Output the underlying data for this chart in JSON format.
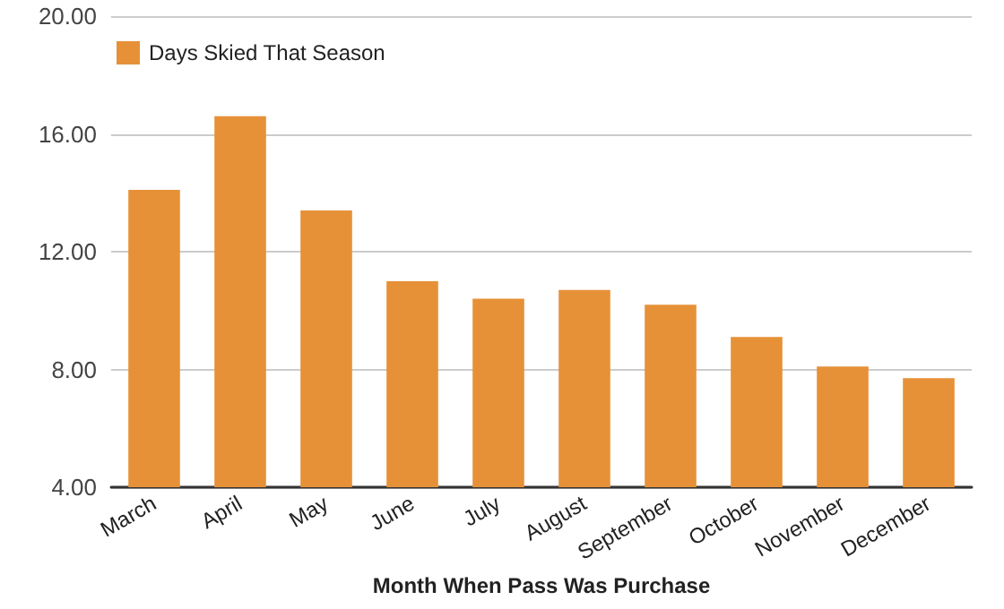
{
  "chart_data": {
    "type": "bar",
    "xlabel": "Month When Pass Was Purchase",
    "categories": [
      "March",
      "April",
      "May",
      "June",
      "July",
      "August",
      "September",
      "October",
      "November",
      "December"
    ],
    "series": [
      {
        "name": "Days Skied That Season",
        "color": "#e69138",
        "values": [
          14.1,
          16.6,
          13.4,
          11.0,
          10.4,
          10.7,
          10.2,
          9.1,
          8.1,
          7.7
        ]
      }
    ],
    "ylim": [
      4,
      20
    ],
    "yticks": [
      {
        "value": 4,
        "label": "4.00"
      },
      {
        "value": 8,
        "label": "8.00"
      },
      {
        "value": 12,
        "label": "12.00"
      },
      {
        "value": 16,
        "label": "16.00"
      },
      {
        "value": 20,
        "label": "20.00"
      }
    ],
    "grid": "y",
    "legend": "top left"
  }
}
